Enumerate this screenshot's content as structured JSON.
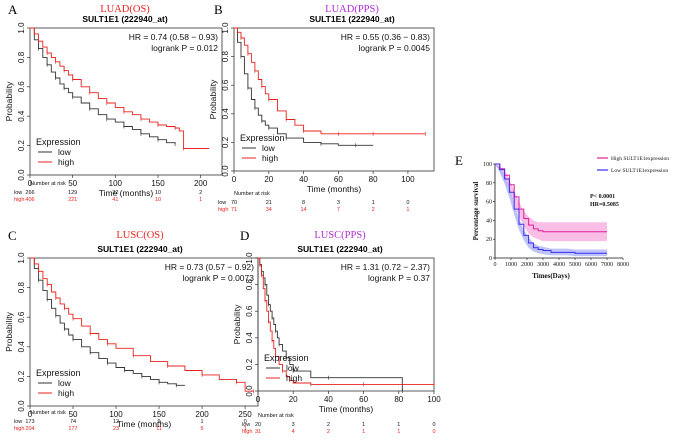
{
  "colors": {
    "low": "#333333",
    "high": "#e8231e",
    "purple": "#b02cd8",
    "e_high": "#e0209a",
    "e_low": "#3a2df0",
    "e_high_band": "#f7a8dc",
    "e_low_band": "#aab0f6"
  },
  "chart_data": [
    {
      "letter": "A",
      "title": "LUAD(OS)",
      "title_color": "red",
      "gene": "SULT1E1 (222940_at)",
      "hr": "HR = 0.74 (0.58 − 0.93)",
      "logrank": "logrank P = 0.012",
      "type": "line",
      "xlabel": "Time (months)",
      "ylabel": "Probability",
      "xlim": [
        0,
        225
      ],
      "ylim": [
        0,
        1
      ],
      "xticks": [
        "0",
        "50",
        "100",
        "150",
        "200"
      ],
      "xtick_values": [
        0,
        50,
        100,
        150,
        200
      ],
      "yticks": [
        "0.0",
        "0.2",
        "0.4",
        "0.6",
        "0.8",
        "1.0"
      ],
      "legend": {
        "title": "Expression",
        "entries": [
          "low",
          "high"
        ]
      },
      "risk": {
        "header": "Number at risk",
        "times": [
          0,
          50,
          100,
          150,
          200
        ],
        "low_label": "low",
        "high_label": "high",
        "low": [
          "266",
          "129",
          "32",
          "10",
          "2"
        ],
        "high": [
          "406",
          "221",
          "41",
          "10",
          "1"
        ]
      },
      "series": [
        {
          "name": "low",
          "x": [
            0,
            5,
            10,
            15,
            20,
            25,
            30,
            35,
            40,
            45,
            50,
            60,
            70,
            80,
            90,
            100,
            110,
            120,
            130,
            140,
            150,
            160,
            170
          ],
          "y": [
            1,
            0.92,
            0.86,
            0.8,
            0.75,
            0.7,
            0.66,
            0.62,
            0.59,
            0.56,
            0.53,
            0.49,
            0.45,
            0.41,
            0.38,
            0.36,
            0.33,
            0.31,
            0.28,
            0.26,
            0.24,
            0.22,
            0.21
          ]
        },
        {
          "name": "high",
          "x": [
            0,
            5,
            10,
            15,
            20,
            25,
            30,
            35,
            40,
            45,
            50,
            60,
            70,
            80,
            90,
            100,
            110,
            120,
            130,
            140,
            150,
            160,
            170,
            175,
            180,
            210
          ],
          "y": [
            1,
            0.96,
            0.91,
            0.87,
            0.83,
            0.8,
            0.77,
            0.74,
            0.71,
            0.68,
            0.65,
            0.6,
            0.56,
            0.52,
            0.49,
            0.46,
            0.43,
            0.41,
            0.38,
            0.36,
            0.34,
            0.33,
            0.32,
            0.3,
            0.18,
            0.18
          ]
        }
      ]
    },
    {
      "letter": "B",
      "title": "LUAD(PPS)",
      "title_color": "purple",
      "gene": "SULT1E1 (222940_at)",
      "hr": "HR = 0.55 (0.36 − 0.83)",
      "logrank": "logrank P = 0.0045",
      "type": "line",
      "xlabel": "Time (months)",
      "ylabel": "Probability",
      "xlim": [
        0,
        115
      ],
      "ylim": [
        0,
        1
      ],
      "xticks": [
        "0",
        "20",
        "40",
        "60",
        "80",
        "100"
      ],
      "xtick_values": [
        0,
        20,
        40,
        60,
        80,
        100
      ],
      "yticks": [
        "0.0",
        "0.2",
        "0.4",
        "0.6",
        "0.8",
        "1.0"
      ],
      "legend": {
        "title": "Expression",
        "entries": [
          "low",
          "high"
        ]
      },
      "risk": {
        "header": "Number at risk",
        "times": [
          0,
          20,
          40,
          60,
          80,
          100
        ],
        "low_label": "low",
        "high_label": "high",
        "low": [
          "70",
          "21",
          "8",
          "3",
          "1",
          "0"
        ],
        "high": [
          "71",
          "34",
          "14",
          "7",
          "2",
          "1"
        ]
      },
      "series": [
        {
          "name": "low",
          "x": [
            0,
            2,
            4,
            6,
            8,
            10,
            12,
            14,
            16,
            18,
            20,
            25,
            30,
            40,
            50,
            60,
            70,
            80
          ],
          "y": [
            1,
            0.9,
            0.8,
            0.68,
            0.58,
            0.5,
            0.44,
            0.39,
            0.35,
            0.32,
            0.3,
            0.26,
            0.23,
            0.2,
            0.19,
            0.18,
            0.18,
            0.18
          ]
        },
        {
          "name": "high",
          "x": [
            0,
            2,
            4,
            6,
            8,
            10,
            12,
            14,
            16,
            18,
            20,
            25,
            30,
            35,
            40,
            50,
            60,
            70,
            80,
            100,
            110
          ],
          "y": [
            1,
            0.97,
            0.93,
            0.88,
            0.82,
            0.76,
            0.7,
            0.64,
            0.59,
            0.54,
            0.5,
            0.42,
            0.36,
            0.32,
            0.28,
            0.26,
            0.26,
            0.26,
            0.26,
            0.26,
            0.26
          ]
        }
      ]
    },
    {
      "letter": "C",
      "title": "LUSC(OS)",
      "title_color": "red",
      "gene": "SULT1E1 (222940_at)",
      "hr": "HR = 0.73 (0.57 − 0.92)",
      "logrank": "logrank P = 0.0073",
      "type": "line",
      "xlabel": "Time (months)",
      "ylabel": "Probability",
      "xlim": [
        0,
        265
      ],
      "ylim": [
        0,
        1
      ],
      "xticks": [
        "0",
        "50",
        "100",
        "150",
        "200",
        "250"
      ],
      "xtick_values": [
        0,
        50,
        100,
        150,
        200,
        250
      ],
      "yticks": [
        "0.0",
        "0.2",
        "0.4",
        "0.6",
        "0.8",
        "1.0"
      ],
      "legend": {
        "title": "Expression",
        "entries": [
          "low",
          "high"
        ]
      },
      "risk": {
        "header": "Number at risk",
        "times": [
          0,
          50,
          100,
          150,
          200,
          250
        ],
        "low_label": "low",
        "high_label": "high",
        "low": [
          "173",
          "74",
          "12",
          "9",
          "1",
          "0"
        ],
        "high": [
          "204",
          "177",
          "23",
          "11",
          "5",
          "1"
        ]
      },
      "series": [
        {
          "name": "low",
          "x": [
            0,
            5,
            10,
            15,
            20,
            25,
            30,
            35,
            40,
            45,
            50,
            60,
            70,
            80,
            90,
            100,
            110,
            120,
            130,
            140,
            150,
            160,
            170,
            180
          ],
          "y": [
            1,
            0.93,
            0.85,
            0.78,
            0.72,
            0.66,
            0.61,
            0.56,
            0.52,
            0.48,
            0.45,
            0.4,
            0.36,
            0.32,
            0.29,
            0.26,
            0.24,
            0.22,
            0.2,
            0.18,
            0.16,
            0.15,
            0.14,
            0.14
          ]
        },
        {
          "name": "high",
          "x": [
            0,
            5,
            10,
            15,
            20,
            25,
            30,
            35,
            40,
            45,
            50,
            60,
            70,
            80,
            90,
            100,
            120,
            140,
            160,
            180,
            200,
            220,
            240,
            250,
            260
          ],
          "y": [
            1,
            0.96,
            0.91,
            0.86,
            0.82,
            0.77,
            0.73,
            0.69,
            0.66,
            0.62,
            0.59,
            0.54,
            0.49,
            0.45,
            0.42,
            0.39,
            0.34,
            0.3,
            0.27,
            0.24,
            0.21,
            0.18,
            0.16,
            0.1,
            0.1
          ]
        }
      ]
    },
    {
      "letter": "D",
      "title": "LUSC(PPS)",
      "title_color": "purple",
      "gene": "SULT1E1 (222940_at)",
      "hr": "HR = 1.31 (0.72 − 2.37)",
      "logrank": "logrank P = 0.37",
      "type": "line",
      "xlabel": "Time (months)",
      "ylabel": "Probability",
      "xlim": [
        0,
        100
      ],
      "ylim": [
        0,
        1
      ],
      "xticks": [
        "0",
        "20",
        "40",
        "60",
        "80",
        "100"
      ],
      "xtick_values": [
        0,
        20,
        40,
        60,
        80,
        100
      ],
      "yticks": [
        "0.0",
        "0.2",
        "0.4",
        "0.6",
        "0.8",
        "1.0"
      ],
      "legend": {
        "title": "Expression",
        "entries": [
          "low",
          "high"
        ]
      },
      "risk": {
        "header": "Number at risk",
        "times": [
          0,
          20,
          40,
          60,
          80,
          100
        ],
        "low_label": "low",
        "high_label": "high",
        "low": [
          "20",
          "3",
          "2",
          "1",
          "1",
          "0"
        ],
        "high": [
          "31",
          "4",
          "2",
          "1",
          "1",
          "0"
        ]
      },
      "series": [
        {
          "name": "low",
          "x": [
            0,
            1,
            2,
            3,
            4,
            5,
            6,
            7,
            8,
            9,
            10,
            11,
            12,
            14,
            16,
            18,
            20,
            30,
            40,
            80,
            82
          ],
          "y": [
            1,
            0.95,
            0.9,
            0.85,
            0.8,
            0.72,
            0.65,
            0.6,
            0.55,
            0.5,
            0.45,
            0.4,
            0.35,
            0.3,
            0.25,
            0.2,
            0.15,
            0.1,
            0.1,
            0.1,
            0
          ]
        },
        {
          "name": "high",
          "x": [
            0,
            1,
            2,
            3,
            4,
            5,
            6,
            7,
            8,
            9,
            10,
            12,
            14,
            16,
            18,
            20,
            30,
            40,
            60,
            80,
            100
          ],
          "y": [
            1,
            0.94,
            0.87,
            0.77,
            0.68,
            0.6,
            0.52,
            0.45,
            0.38,
            0.32,
            0.26,
            0.2,
            0.15,
            0.11,
            0.08,
            0.06,
            0.05,
            0.05,
            0.05,
            0.05,
            0.05
          ]
        }
      ]
    },
    {
      "letter": "E",
      "type": "line",
      "xlabel": "Times(Days)",
      "ylabel": "Percentage survival",
      "xlim": [
        0,
        8000
      ],
      "ylim": [
        0,
        100
      ],
      "xticks": [
        "0",
        "1000",
        "2000",
        "3000",
        "4000",
        "5000",
        "6000",
        "7000",
        "8000"
      ],
      "xtick_values": [
        0,
        1000,
        2000,
        3000,
        4000,
        5000,
        6000,
        7000,
        8000
      ],
      "yticks": [
        "0",
        "20",
        "40",
        "60",
        "80",
        "100"
      ],
      "ytick_values": [
        0,
        20,
        40,
        60,
        80,
        100
      ],
      "legend": {
        "entries": [
          "High SULT1E1expression",
          "Low SULT1E1expression"
        ]
      },
      "pvalue": "P< 0.0001",
      "hr": "HR=0.5085",
      "series": [
        {
          "name": "High SULT1E1expression",
          "x": [
            0,
            300,
            600,
            900,
            1200,
            1500,
            1800,
            2100,
            2400,
            2700,
            3000,
            3500,
            4000,
            4500,
            5000,
            5500,
            6000,
            6500,
            7000
          ],
          "y": [
            100,
            95,
            88,
            78,
            65,
            52,
            42,
            35,
            31,
            29,
            28,
            28,
            28,
            28,
            28,
            28,
            28,
            28,
            28
          ],
          "lower": [
            100,
            92,
            83,
            72,
            58,
            44,
            34,
            26,
            22,
            20,
            18,
            18,
            18,
            18,
            18,
            18,
            18,
            18,
            18
          ],
          "upper": [
            100,
            98,
            93,
            84,
            72,
            60,
            50,
            44,
            40,
            38,
            38,
            38,
            38,
            38,
            38,
            38,
            38,
            38,
            38
          ]
        },
        {
          "name": "Low SULT1E1expression",
          "x": [
            0,
            300,
            600,
            900,
            1200,
            1500,
            1800,
            2100,
            2400,
            2700,
            3000,
            3500,
            4000,
            4500,
            5000,
            5500,
            6000,
            6500,
            7000
          ],
          "y": [
            100,
            94,
            84,
            70,
            52,
            36,
            24,
            16,
            11,
            9,
            8,
            6,
            6,
            6,
            5,
            5,
            5,
            5,
            5
          ],
          "lower": [
            100,
            91,
            79,
            64,
            46,
            30,
            19,
            11,
            7,
            5,
            4,
            3,
            3,
            3,
            2,
            2,
            2,
            2,
            2
          ],
          "upper": [
            100,
            97,
            89,
            76,
            58,
            42,
            30,
            22,
            16,
            13,
            12,
            10,
            10,
            10,
            9,
            9,
            9,
            9,
            9
          ]
        }
      ]
    }
  ]
}
